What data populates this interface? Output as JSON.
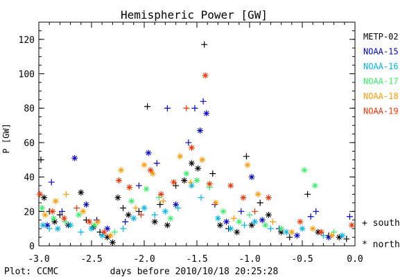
{
  "chart_data": {
    "type": "scatter",
    "title": "Hemispheric Power [GW]",
    "xlabel": "days before 2010/10/18 20:25:28",
    "ylabel": "P [GW]",
    "xlim": [
      -3.0,
      0.0
    ],
    "ylim": [
      0,
      130
    ],
    "x_ticks": [
      "-3.0",
      "-2.5",
      "-2.0",
      "-1.5",
      "-1.0",
      "-0.5",
      "0.0"
    ],
    "y_ticks": [
      "0",
      "20",
      "40",
      "60",
      "80",
      "100",
      "120"
    ],
    "grid": false,
    "legend_placement": "right",
    "credit": "Plot: CCMC",
    "markers": {
      "south": "+",
      "north": "*"
    },
    "marker_legend": [
      "+ south",
      "* north"
    ],
    "series": [
      {
        "name": "METP-02",
        "color": "#000000",
        "points": [
          {
            "x": -2.98,
            "y": 50,
            "hemi": "south"
          },
          {
            "x": -2.95,
            "y": 28,
            "hemi": "north"
          },
          {
            "x": -2.9,
            "y": 20,
            "hemi": "south"
          },
          {
            "x": -2.85,
            "y": 14,
            "hemi": "north"
          },
          {
            "x": -2.8,
            "y": 18,
            "hemi": "south"
          },
          {
            "x": -2.72,
            "y": 12,
            "hemi": "north"
          },
          {
            "x": -2.6,
            "y": 31,
            "hemi": "north"
          },
          {
            "x": -2.55,
            "y": 15,
            "hemi": "south"
          },
          {
            "x": -2.48,
            "y": 11,
            "hemi": "north"
          },
          {
            "x": -2.42,
            "y": 8,
            "hemi": "south"
          },
          {
            "x": -2.35,
            "y": 5,
            "hemi": "north"
          },
          {
            "x": -2.3,
            "y": 2,
            "hemi": "north"
          },
          {
            "x": -2.25,
            "y": 28,
            "hemi": "north"
          },
          {
            "x": -2.2,
            "y": 22,
            "hemi": "south"
          },
          {
            "x": -2.15,
            "y": 18,
            "hemi": "north"
          },
          {
            "x": -2.05,
            "y": 20,
            "hemi": "south"
          },
          {
            "x": -1.97,
            "y": 81,
            "hemi": "south"
          },
          {
            "x": -1.9,
            "y": 14,
            "hemi": "north"
          },
          {
            "x": -1.85,
            "y": 24,
            "hemi": "south"
          },
          {
            "x": -1.78,
            "y": 12,
            "hemi": "north"
          },
          {
            "x": -1.7,
            "y": 35,
            "hemi": "south"
          },
          {
            "x": -1.62,
            "y": 38,
            "hemi": "north"
          },
          {
            "x": -1.55,
            "y": 48,
            "hemi": "north"
          },
          {
            "x": -1.49,
            "y": 45,
            "hemi": "north"
          },
          {
            "x": -1.43,
            "y": 117,
            "hemi": "south"
          },
          {
            "x": -1.35,
            "y": 42,
            "hemi": "south"
          },
          {
            "x": -1.28,
            "y": 12,
            "hemi": "north"
          },
          {
            "x": -1.2,
            "y": 10,
            "hemi": "south"
          },
          {
            "x": -1.12,
            "y": 8,
            "hemi": "north"
          },
          {
            "x": -1.03,
            "y": 52,
            "hemi": "south"
          },
          {
            "x": -0.98,
            "y": 12,
            "hemi": "north"
          },
          {
            "x": -0.9,
            "y": 25,
            "hemi": "south"
          },
          {
            "x": -0.82,
            "y": 18,
            "hemi": "north"
          },
          {
            "x": -0.7,
            "y": 8,
            "hemi": "north"
          },
          {
            "x": -0.62,
            "y": 5,
            "hemi": "south"
          },
          {
            "x": -0.45,
            "y": 30,
            "hemi": "south"
          },
          {
            "x": -0.35,
            "y": 8,
            "hemi": "north"
          },
          {
            "x": -0.25,
            "y": 6,
            "hemi": "south"
          },
          {
            "x": -0.15,
            "y": 5,
            "hemi": "north"
          },
          {
            "x": -0.08,
            "y": 4,
            "hemi": "south"
          }
        ]
      },
      {
        "name": "NOAA-15",
        "color": "#0000cc",
        "points": [
          {
            "x": -2.92,
            "y": 12,
            "hemi": "north"
          },
          {
            "x": -2.88,
            "y": 37,
            "hemi": "south"
          },
          {
            "x": -2.78,
            "y": 20,
            "hemi": "south"
          },
          {
            "x": -2.66,
            "y": 51,
            "hemi": "north"
          },
          {
            "x": -2.55,
            "y": 24,
            "hemi": "north"
          },
          {
            "x": -2.45,
            "y": 15,
            "hemi": "south"
          },
          {
            "x": -2.35,
            "y": 10,
            "hemi": "north"
          },
          {
            "x": -2.18,
            "y": 14,
            "hemi": "south"
          },
          {
            "x": -2.05,
            "y": 35,
            "hemi": "south"
          },
          {
            "x": -1.96,
            "y": 54,
            "hemi": "north"
          },
          {
            "x": -1.88,
            "y": 48,
            "hemi": "south"
          },
          {
            "x": -1.78,
            "y": 80,
            "hemi": "south"
          },
          {
            "x": -1.7,
            "y": 24,
            "hemi": "north"
          },
          {
            "x": -1.58,
            "y": 60,
            "hemi": "south"
          },
          {
            "x": -1.52,
            "y": 80,
            "hemi": "south"
          },
          {
            "x": -1.47,
            "y": 67,
            "hemi": "north"
          },
          {
            "x": -1.44,
            "y": 84,
            "hemi": "south"
          },
          {
            "x": -1.41,
            "y": 77,
            "hemi": "north"
          },
          {
            "x": -1.33,
            "y": 24,
            "hemi": "south"
          },
          {
            "x": -1.22,
            "y": 14,
            "hemi": "north"
          },
          {
            "x": -1.08,
            "y": 20,
            "hemi": "south"
          },
          {
            "x": -0.98,
            "y": 40,
            "hemi": "north"
          },
          {
            "x": -0.88,
            "y": 15,
            "hemi": "north"
          },
          {
            "x": -0.72,
            "y": 10,
            "hemi": "south"
          },
          {
            "x": -0.55,
            "y": 6,
            "hemi": "north"
          },
          {
            "x": -0.42,
            "y": 17,
            "hemi": "south"
          },
          {
            "x": -0.37,
            "y": 20,
            "hemi": "south"
          },
          {
            "x": -0.25,
            "y": 5,
            "hemi": "north"
          },
          {
            "x": -0.05,
            "y": 17,
            "hemi": "south"
          }
        ]
      },
      {
        "name": "NOAA-16",
        "color": "#00b4e6",
        "points": [
          {
            "x": -2.96,
            "y": 12,
            "hemi": "north"
          },
          {
            "x": -2.9,
            "y": 10,
            "hemi": "south"
          },
          {
            "x": -2.82,
            "y": 10,
            "hemi": "north"
          },
          {
            "x": -2.7,
            "y": 12,
            "hemi": "north"
          },
          {
            "x": -2.6,
            "y": 8,
            "hemi": "south"
          },
          {
            "x": -2.5,
            "y": 10,
            "hemi": "north"
          },
          {
            "x": -2.4,
            "y": 6,
            "hemi": "north"
          },
          {
            "x": -2.2,
            "y": 10,
            "hemi": "south"
          },
          {
            "x": -2.1,
            "y": 16,
            "hemi": "north"
          },
          {
            "x": -2.0,
            "y": 22,
            "hemi": "north"
          },
          {
            "x": -1.9,
            "y": 18,
            "hemi": "south"
          },
          {
            "x": -1.8,
            "y": 20,
            "hemi": "north"
          },
          {
            "x": -1.68,
            "y": 22,
            "hemi": "south"
          },
          {
            "x": -1.55,
            "y": 35,
            "hemi": "north"
          },
          {
            "x": -1.46,
            "y": 28,
            "hemi": "south"
          },
          {
            "x": -1.3,
            "y": 16,
            "hemi": "north"
          },
          {
            "x": -1.18,
            "y": 10,
            "hemi": "north"
          },
          {
            "x": -1.05,
            "y": 12,
            "hemi": "south"
          },
          {
            "x": -0.95,
            "y": 14,
            "hemi": "north"
          },
          {
            "x": -0.8,
            "y": 10,
            "hemi": "south"
          },
          {
            "x": -0.65,
            "y": 8,
            "hemi": "north"
          },
          {
            "x": -0.5,
            "y": 10,
            "hemi": "north"
          },
          {
            "x": -0.3,
            "y": 6,
            "hemi": "south"
          },
          {
            "x": -0.12,
            "y": 6,
            "hemi": "north"
          }
        ]
      },
      {
        "name": "NOAA-17",
        "color": "#33ee66",
        "points": [
          {
            "x": -2.97,
            "y": 22,
            "hemi": "north"
          },
          {
            "x": -2.86,
            "y": 16,
            "hemi": "north"
          },
          {
            "x": -2.75,
            "y": 14,
            "hemi": "south"
          },
          {
            "x": -2.62,
            "y": 18,
            "hemi": "north"
          },
          {
            "x": -2.47,
            "y": 12,
            "hemi": "north"
          },
          {
            "x": -2.28,
            "y": 8,
            "hemi": "south"
          },
          {
            "x": -2.12,
            "y": 26,
            "hemi": "north"
          },
          {
            "x": -1.98,
            "y": 33,
            "hemi": "north"
          },
          {
            "x": -1.86,
            "y": 28,
            "hemi": "south"
          },
          {
            "x": -1.75,
            "y": 16,
            "hemi": "north"
          },
          {
            "x": -1.6,
            "y": 42,
            "hemi": "north"
          },
          {
            "x": -1.5,
            "y": 38,
            "hemi": "north"
          },
          {
            "x": -1.38,
            "y": 34,
            "hemi": "south"
          },
          {
            "x": -1.25,
            "y": 20,
            "hemi": "north"
          },
          {
            "x": -1.1,
            "y": 14,
            "hemi": "north"
          },
          {
            "x": -1.0,
            "y": 18,
            "hemi": "south"
          },
          {
            "x": -0.85,
            "y": 12,
            "hemi": "north"
          },
          {
            "x": -0.7,
            "y": 10,
            "hemi": "north"
          },
          {
            "x": -0.48,
            "y": 44,
            "hemi": "north"
          },
          {
            "x": -0.38,
            "y": 35,
            "hemi": "north"
          },
          {
            "x": -0.2,
            "y": 8,
            "hemi": "south"
          }
        ]
      },
      {
        "name": "NOAA-18",
        "color": "#ff9900",
        "points": [
          {
            "x": -2.94,
            "y": 18,
            "hemi": "north"
          },
          {
            "x": -2.84,
            "y": 26,
            "hemi": "north"
          },
          {
            "x": -2.74,
            "y": 30,
            "hemi": "south"
          },
          {
            "x": -2.58,
            "y": 20,
            "hemi": "north"
          },
          {
            "x": -2.44,
            "y": 14,
            "hemi": "north"
          },
          {
            "x": -2.32,
            "y": 6,
            "hemi": "north"
          },
          {
            "x": -2.22,
            "y": 44,
            "hemi": "north"
          },
          {
            "x": -2.08,
            "y": 22,
            "hemi": "south"
          },
          {
            "x": -2.0,
            "y": 47,
            "hemi": "north"
          },
          {
            "x": -1.92,
            "y": 42,
            "hemi": "north"
          },
          {
            "x": -1.82,
            "y": 26,
            "hemi": "south"
          },
          {
            "x": -1.66,
            "y": 52,
            "hemi": "north"
          },
          {
            "x": -1.56,
            "y": 37,
            "hemi": "south"
          },
          {
            "x": -1.45,
            "y": 50,
            "hemi": "north"
          },
          {
            "x": -1.32,
            "y": 25,
            "hemi": "north"
          },
          {
            "x": -1.15,
            "y": 16,
            "hemi": "south"
          },
          {
            "x": -1.02,
            "y": 47,
            "hemi": "north"
          },
          {
            "x": -0.92,
            "y": 30,
            "hemi": "north"
          },
          {
            "x": -0.78,
            "y": 14,
            "hemi": "south"
          },
          {
            "x": -0.6,
            "y": 8,
            "hemi": "north"
          },
          {
            "x": -0.4,
            "y": 10,
            "hemi": "north"
          },
          {
            "x": -0.22,
            "y": 6,
            "hemi": "north"
          }
        ]
      },
      {
        "name": "NOAA-19",
        "color": "#ee3300",
        "points": [
          {
            "x": -2.99,
            "y": 30,
            "hemi": "north"
          },
          {
            "x": -2.87,
            "y": 20,
            "hemi": "north"
          },
          {
            "x": -2.76,
            "y": 16,
            "hemi": "north"
          },
          {
            "x": -2.64,
            "y": 22,
            "hemi": "south"
          },
          {
            "x": -2.52,
            "y": 14,
            "hemi": "north"
          },
          {
            "x": -2.38,
            "y": 8,
            "hemi": "north"
          },
          {
            "x": -2.24,
            "y": 38,
            "hemi": "north"
          },
          {
            "x": -2.14,
            "y": 34,
            "hemi": "north"
          },
          {
            "x": -2.03,
            "y": 18,
            "hemi": "south"
          },
          {
            "x": -1.94,
            "y": 44,
            "hemi": "north"
          },
          {
            "x": -1.84,
            "y": 30,
            "hemi": "north"
          },
          {
            "x": -1.72,
            "y": 37,
            "hemi": "north"
          },
          {
            "x": -1.6,
            "y": 80,
            "hemi": "south"
          },
          {
            "x": -1.55,
            "y": 57,
            "hemi": "north"
          },
          {
            "x": -1.42,
            "y": 99,
            "hemi": "north"
          },
          {
            "x": -1.38,
            "y": 36,
            "hemi": "north"
          },
          {
            "x": -1.18,
            "y": 35,
            "hemi": "north"
          },
          {
            "x": -1.06,
            "y": 28,
            "hemi": "north"
          },
          {
            "x": -0.95,
            "y": 20,
            "hemi": "south"
          },
          {
            "x": -0.82,
            "y": 28,
            "hemi": "north"
          },
          {
            "x": -0.52,
            "y": 14,
            "hemi": "north"
          },
          {
            "x": -0.32,
            "y": 8,
            "hemi": "north"
          },
          {
            "x": -0.03,
            "y": 12,
            "hemi": "north"
          }
        ]
      }
    ]
  }
}
